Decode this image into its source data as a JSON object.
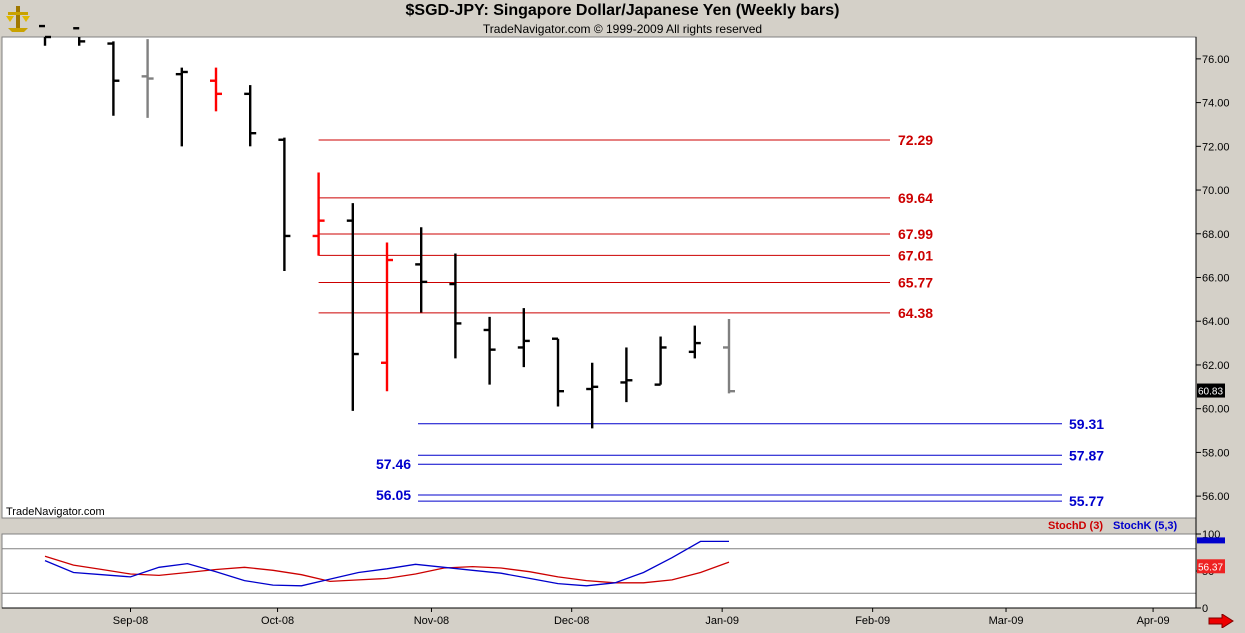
{
  "window": {
    "title": "$SGD-JPY:  Singapore Dollar/Japanese Yen  (Weekly bars)",
    "subtitle": "TradeNavigator.com © 1999-2009 All rights reserved",
    "watermark": "TradeNavigator.com"
  },
  "chart_data": [
    {
      "type": "ohlc",
      "title": "$SGD-JPY:  Singapore Dollar/Japanese Yen  (Weekly bars)",
      "ylim": [
        55,
        77
      ],
      "yticks": [
        "76.00",
        "74.00",
        "72.00",
        "70.00",
        "68.00",
        "66.00",
        "64.00",
        "62.00",
        "60.00",
        "58.00",
        "56.00"
      ],
      "x_ticks": [
        {
          "label": "Sep-08",
          "week": 2.5
        },
        {
          "label": "Oct-08",
          "week": 6.8
        },
        {
          "label": "Nov-08",
          "week": 11.3
        },
        {
          "label": "Dec-08",
          "week": 15.4
        },
        {
          "label": "Jan-09",
          "week": 19.8
        },
        {
          "label": "Feb-09",
          "week": 24.2
        },
        {
          "label": "Mar-09",
          "week": 28.1
        },
        {
          "label": "Apr-09",
          "week": 32.4
        }
      ],
      "bars": [
        {
          "open": 77.5,
          "high": 77.5,
          "low": 76.6,
          "close": 77.0,
          "color": "black"
        },
        {
          "open": 77.4,
          "high": 77.5,
          "low": 76.6,
          "close": 76.8,
          "color": "black"
        },
        {
          "open": 76.7,
          "high": 76.8,
          "low": 73.4,
          "close": 75.0,
          "color": "black"
        },
        {
          "open": 75.2,
          "high": 76.9,
          "low": 73.3,
          "close": 75.1,
          "color": "gray"
        },
        {
          "open": 75.3,
          "high": 75.6,
          "low": 72.0,
          "close": 75.4,
          "color": "black"
        },
        {
          "open": 75.0,
          "high": 75.6,
          "low": 73.6,
          "close": 74.4,
          "color": "red"
        },
        {
          "open": 74.4,
          "high": 74.8,
          "low": 72.0,
          "close": 72.6,
          "color": "black"
        },
        {
          "open": 72.3,
          "high": 72.4,
          "low": 66.3,
          "close": 67.9,
          "color": "black"
        },
        {
          "open": 67.9,
          "high": 70.8,
          "low": 67.0,
          "close": 68.6,
          "color": "red"
        },
        {
          "open": 68.6,
          "high": 69.4,
          "low": 59.9,
          "close": 62.5,
          "color": "black"
        },
        {
          "open": 62.1,
          "high": 67.6,
          "low": 60.8,
          "close": 66.8,
          "color": "red"
        },
        {
          "open": 66.6,
          "high": 68.3,
          "low": 64.4,
          "close": 65.8,
          "color": "black"
        },
        {
          "open": 65.7,
          "high": 67.1,
          "low": 62.3,
          "close": 63.9,
          "color": "black"
        },
        {
          "open": 63.6,
          "high": 64.2,
          "low": 61.1,
          "close": 62.7,
          "color": "black"
        },
        {
          "open": 62.8,
          "high": 64.6,
          "low": 61.9,
          "close": 63.1,
          "color": "black"
        },
        {
          "open": 63.2,
          "high": 63.2,
          "low": 60.1,
          "close": 60.8,
          "color": "black"
        },
        {
          "open": 60.9,
          "high": 62.1,
          "low": 59.1,
          "close": 61.0,
          "color": "black"
        },
        {
          "open": 61.2,
          "high": 62.8,
          "low": 60.3,
          "close": 61.3,
          "color": "black"
        },
        {
          "open": 61.1,
          "high": 63.3,
          "low": 61.1,
          "close": 62.8,
          "color": "black"
        },
        {
          "open": 62.6,
          "high": 63.8,
          "low": 62.3,
          "close": 63.0,
          "color": "black"
        },
        {
          "open": 62.8,
          "high": 64.1,
          "low": 60.7,
          "close": 60.8,
          "color": "gray"
        }
      ],
      "resistance_levels": [
        {
          "value": 72.29,
          "label": "72.29",
          "start_week": 8.0
        },
        {
          "value": 69.64,
          "label": "69.64",
          "start_week": 8.0
        },
        {
          "value": 67.99,
          "label": "67.99",
          "start_week": 8.0
        },
        {
          "value": 67.01,
          "label": "67.01",
          "start_week": 8.0
        },
        {
          "value": 65.77,
          "label": "65.77",
          "start_week": 8.0
        },
        {
          "value": 64.38,
          "label": "64.38",
          "start_week": 8.0
        }
      ],
      "support_levels": [
        {
          "value": 59.31,
          "label": "59.31",
          "left_label": ""
        },
        {
          "value": 57.87,
          "label": "57.87",
          "left_label": ""
        },
        {
          "value": 57.46,
          "label": "",
          "left_label": "57.46"
        },
        {
          "value": 56.05,
          "label": "",
          "left_label": "56.05"
        },
        {
          "value": 55.77,
          "label": "55.77",
          "left_label": ""
        }
      ],
      "last_price": "60.83",
      "colors": {
        "resistance": "#cc0000",
        "support": "#0000cc",
        "up": "#000000",
        "down": "#ff0000",
        "neutral": "#808080",
        "grid": "#b0b0b0"
      }
    },
    {
      "type": "line",
      "title": "",
      "ylim": [
        0,
        100
      ],
      "yticks": [
        "100",
        "50",
        "0"
      ],
      "series": [
        {
          "name": "StochD (3)",
          "color": "#cc0000",
          "values": [
            70,
            58,
            52,
            46,
            44,
            48,
            52,
            55,
            51,
            45,
            36,
            38,
            40,
            46,
            54,
            56,
            54,
            49,
            42,
            37,
            34,
            34,
            38,
            48,
            62
          ]
        },
        {
          "name": "StochK (5,3)",
          "color": "#0000cc",
          "values": [
            64,
            48,
            45,
            42,
            55,
            60,
            49,
            37,
            31,
            30,
            39,
            48,
            53,
            59,
            55,
            51,
            47,
            40,
            33,
            30,
            34,
            48,
            68,
            90,
            90
          ]
        }
      ],
      "last_value": "56.37",
      "overbought": 80,
      "oversold": 20
    }
  ]
}
